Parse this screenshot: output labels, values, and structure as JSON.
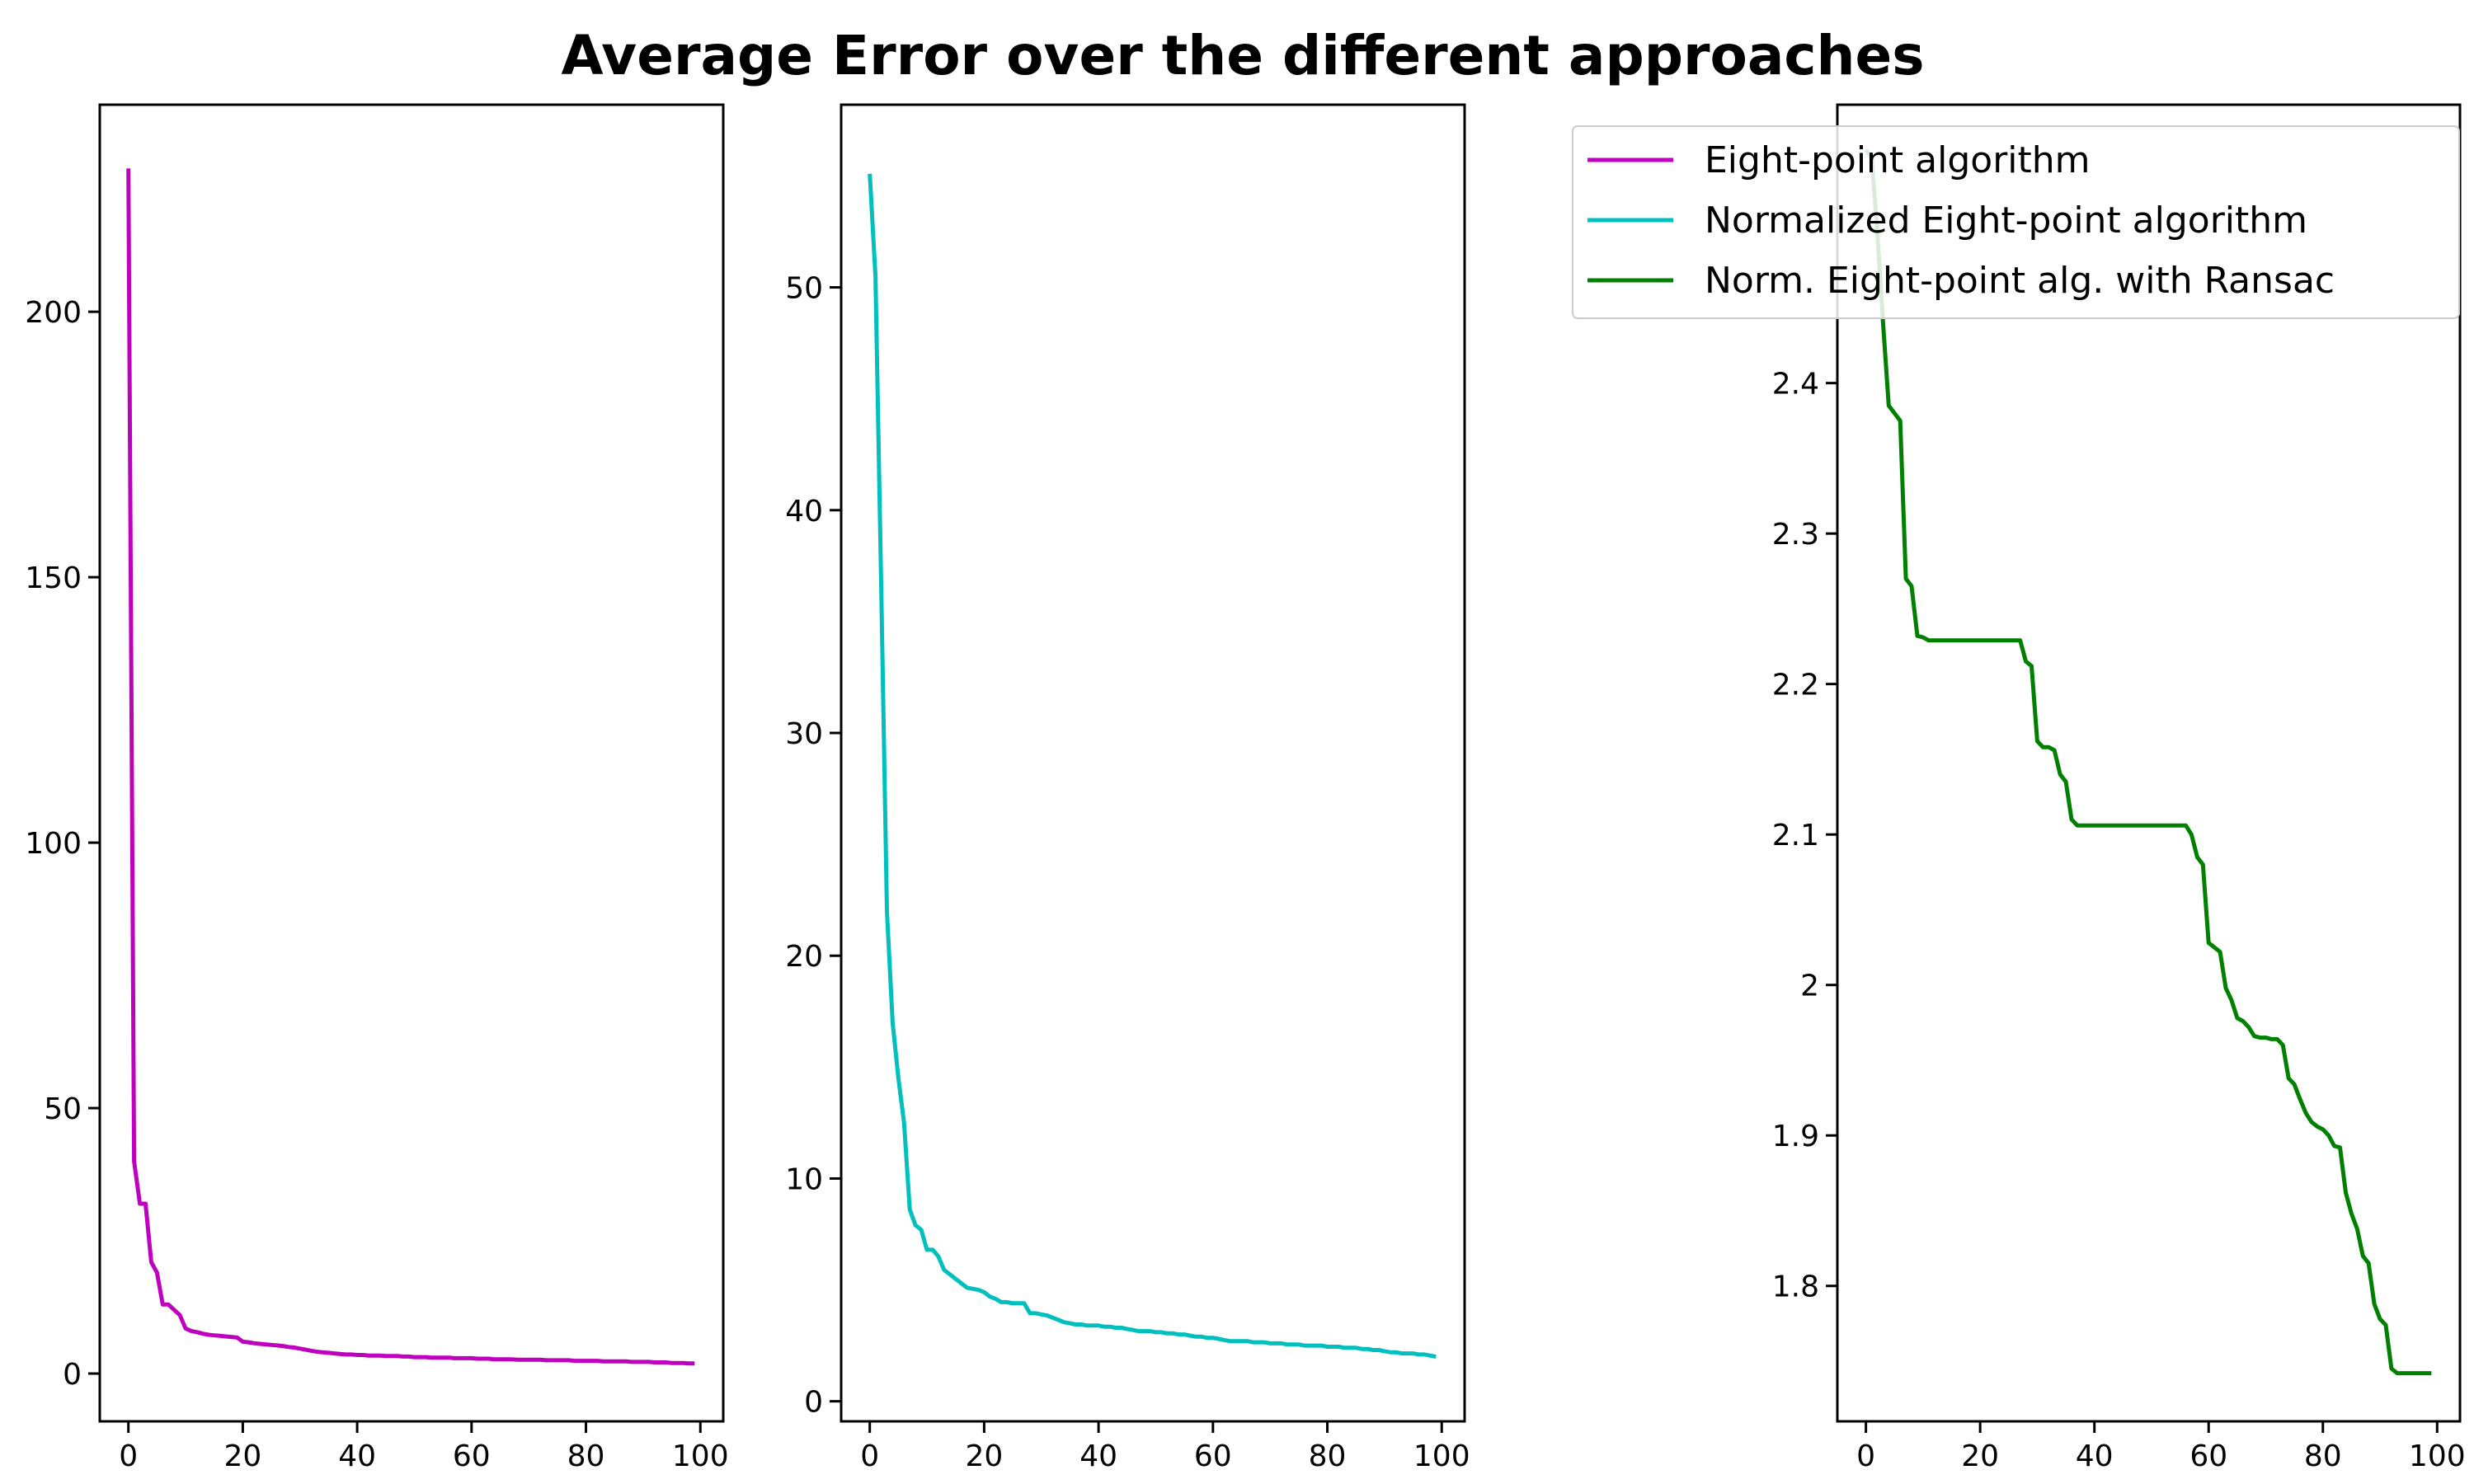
{
  "figure": {
    "title": "Average Error over the different approaches"
  },
  "legend": {
    "placement": "top-right",
    "entries": [
      {
        "label": "Eight-point algorithm",
        "color": "#bf00bf"
      },
      {
        "label": "Normalized Eight-point algorithm",
        "color": "#00bfbf"
      },
      {
        "label": "Norm. Eight-point alg. with Ransac",
        "color": "#008000"
      }
    ]
  },
  "chart_data": [
    {
      "type": "line",
      "series_name": "Eight-point algorithm",
      "color": "#bf00bf",
      "xlim": [
        -5,
        104
      ],
      "ylim": [
        -9,
        239
      ],
      "xticks": [
        0,
        20,
        40,
        60,
        80,
        100
      ],
      "yticks": [
        0,
        50,
        100,
        150,
        200
      ],
      "x": [
        0,
        1,
        2,
        3,
        4,
        5,
        6,
        7,
        8,
        9,
        10,
        11,
        12,
        13,
        14,
        15,
        16,
        17,
        18,
        19,
        20,
        21,
        22,
        23,
        24,
        25,
        26,
        27,
        28,
        29,
        30,
        31,
        32,
        33,
        34,
        35,
        36,
        37,
        38,
        39,
        40,
        41,
        42,
        43,
        44,
        45,
        46,
        47,
        48,
        49,
        50,
        51,
        52,
        53,
        54,
        55,
        56,
        57,
        58,
        59,
        60,
        61,
        62,
        63,
        64,
        65,
        66,
        67,
        68,
        69,
        70,
        71,
        72,
        73,
        74,
        75,
        76,
        77,
        78,
        79,
        80,
        81,
        82,
        83,
        84,
        85,
        86,
        87,
        88,
        89,
        90,
        91,
        92,
        93,
        94,
        95,
        96,
        97,
        98,
        99
      ],
      "y": [
        227,
        40,
        32,
        32,
        21,
        19,
        13,
        13,
        12,
        11,
        8.5,
        8,
        7.8,
        7.5,
        7.3,
        7.2,
        7.1,
        7.0,
        6.9,
        6.8,
        6.0,
        5.9,
        5.7,
        5.6,
        5.5,
        5.4,
        5.3,
        5.2,
        5.0,
        4.9,
        4.7,
        4.5,
        4.3,
        4.1,
        4.0,
        3.9,
        3.8,
        3.7,
        3.6,
        3.6,
        3.5,
        3.5,
        3.4,
        3.4,
        3.4,
        3.3,
        3.3,
        3.3,
        3.2,
        3.2,
        3.1,
        3.1,
        3.1,
        3.0,
        3.0,
        3.0,
        3.0,
        2.9,
        2.9,
        2.9,
        2.9,
        2.8,
        2.8,
        2.8,
        2.7,
        2.7,
        2.7,
        2.7,
        2.6,
        2.6,
        2.6,
        2.6,
        2.6,
        2.5,
        2.5,
        2.5,
        2.5,
        2.5,
        2.4,
        2.4,
        2.4,
        2.4,
        2.4,
        2.3,
        2.3,
        2.3,
        2.3,
        2.3,
        2.2,
        2.2,
        2.2,
        2.2,
        2.1,
        2.1,
        2.1,
        2.0,
        2.0,
        2.0,
        1.9,
        1.9
      ]
    },
    {
      "type": "line",
      "series_name": "Normalized Eight-point algorithm",
      "color": "#00bfbf",
      "xlim": [
        -5,
        104
      ],
      "ylim": [
        -0.9,
        58.2
      ],
      "xticks": [
        0,
        20,
        40,
        60,
        80,
        100
      ],
      "yticks": [
        0,
        10,
        20,
        30,
        40,
        50
      ],
      "x": [
        0,
        1,
        2,
        3,
        4,
        5,
        6,
        7,
        8,
        9,
        10,
        11,
        12,
        13,
        14,
        15,
        16,
        17,
        18,
        19,
        20,
        21,
        22,
        23,
        24,
        25,
        26,
        27,
        28,
        29,
        30,
        31,
        32,
        33,
        34,
        35,
        36,
        37,
        38,
        39,
        40,
        41,
        42,
        43,
        44,
        45,
        46,
        47,
        48,
        49,
        50,
        51,
        52,
        53,
        54,
        55,
        56,
        57,
        58,
        59,
        60,
        61,
        62,
        63,
        64,
        65,
        66,
        67,
        68,
        69,
        70,
        71,
        72,
        73,
        74,
        75,
        76,
        77,
        78,
        79,
        80,
        81,
        82,
        83,
        84,
        85,
        86,
        87,
        88,
        89,
        90,
        91,
        92,
        93,
        94,
        95,
        96,
        97,
        98,
        99
      ],
      "y": [
        55.1,
        50.5,
        36.5,
        22.0,
        17.0,
        14.5,
        12.5,
        8.6,
        7.9,
        7.7,
        6.8,
        6.8,
        6.5,
        5.9,
        5.7,
        5.5,
        5.3,
        5.1,
        5.05,
        5.0,
        4.9,
        4.7,
        4.6,
        4.45,
        4.45,
        4.4,
        4.4,
        4.4,
        3.95,
        3.95,
        3.9,
        3.85,
        3.75,
        3.65,
        3.55,
        3.5,
        3.45,
        3.45,
        3.4,
        3.4,
        3.4,
        3.35,
        3.35,
        3.3,
        3.3,
        3.25,
        3.2,
        3.15,
        3.15,
        3.15,
        3.1,
        3.1,
        3.05,
        3.05,
        3.0,
        3.0,
        2.95,
        2.9,
        2.9,
        2.85,
        2.85,
        2.8,
        2.75,
        2.7,
        2.7,
        2.7,
        2.7,
        2.65,
        2.65,
        2.65,
        2.6,
        2.6,
        2.6,
        2.55,
        2.55,
        2.55,
        2.5,
        2.5,
        2.5,
        2.5,
        2.45,
        2.45,
        2.45,
        2.4,
        2.4,
        2.4,
        2.35,
        2.35,
        2.3,
        2.3,
        2.25,
        2.2,
        2.2,
        2.15,
        2.15,
        2.15,
        2.1,
        2.1,
        2.05,
        2.0
      ]
    },
    {
      "type": "line",
      "series_name": "Norm. Eight-point alg. with Ransac",
      "color": "#008000",
      "xlim": [
        -5,
        104
      ],
      "ylim": [
        1.71,
        2.585
      ],
      "xticks": [
        0,
        20,
        40,
        60,
        80,
        100
      ],
      "yticks": [
        1.8,
        1.9,
        2.0,
        2.1,
        2.2,
        2.3,
        2.4
      ],
      "x": [
        0,
        1,
        2,
        3,
        4,
        5,
        6,
        7,
        8,
        9,
        10,
        11,
        12,
        13,
        14,
        15,
        16,
        17,
        18,
        19,
        20,
        21,
        22,
        23,
        24,
        25,
        26,
        27,
        28,
        29,
        30,
        31,
        32,
        33,
        34,
        35,
        36,
        37,
        38,
        39,
        40,
        41,
        42,
        43,
        44,
        45,
        46,
        47,
        48,
        49,
        50,
        51,
        52,
        53,
        54,
        55,
        56,
        57,
        58,
        59,
        60,
        61,
        62,
        63,
        64,
        65,
        66,
        67,
        68,
        69,
        70,
        71,
        72,
        73,
        74,
        75,
        76,
        77,
        78,
        79,
        80,
        81,
        82,
        83,
        84,
        85,
        86,
        87,
        88,
        89,
        90,
        91,
        92,
        93,
        94,
        95,
        96,
        97,
        98,
        99
      ],
      "y": [
        2.555,
        2.55,
        2.5,
        2.44,
        2.385,
        2.38,
        2.375,
        2.27,
        2.265,
        2.232,
        2.231,
        2.229,
        2.229,
        2.229,
        2.229,
        2.229,
        2.229,
        2.229,
        2.229,
        2.229,
        2.229,
        2.229,
        2.229,
        2.229,
        2.229,
        2.229,
        2.229,
        2.229,
        2.215,
        2.212,
        2.162,
        2.158,
        2.158,
        2.156,
        2.14,
        2.135,
        2.11,
        2.106,
        2.106,
        2.106,
        2.106,
        2.106,
        2.106,
        2.106,
        2.106,
        2.106,
        2.106,
        2.106,
        2.106,
        2.106,
        2.106,
        2.106,
        2.106,
        2.106,
        2.106,
        2.106,
        2.106,
        2.1,
        2.085,
        2.08,
        2.028,
        2.025,
        2.022,
        1.998,
        1.99,
        1.978,
        1.976,
        1.972,
        1.966,
        1.965,
        1.965,
        1.964,
        1.964,
        1.96,
        1.938,
        1.934,
        1.924,
        1.915,
        1.909,
        1.906,
        1.904,
        1.9,
        1.893,
        1.892,
        1.862,
        1.848,
        1.838,
        1.82,
        1.815,
        1.788,
        1.778,
        1.774,
        1.745,
        1.742,
        1.742,
        1.742,
        1.742,
        1.742,
        1.742,
        1.742
      ]
    }
  ]
}
